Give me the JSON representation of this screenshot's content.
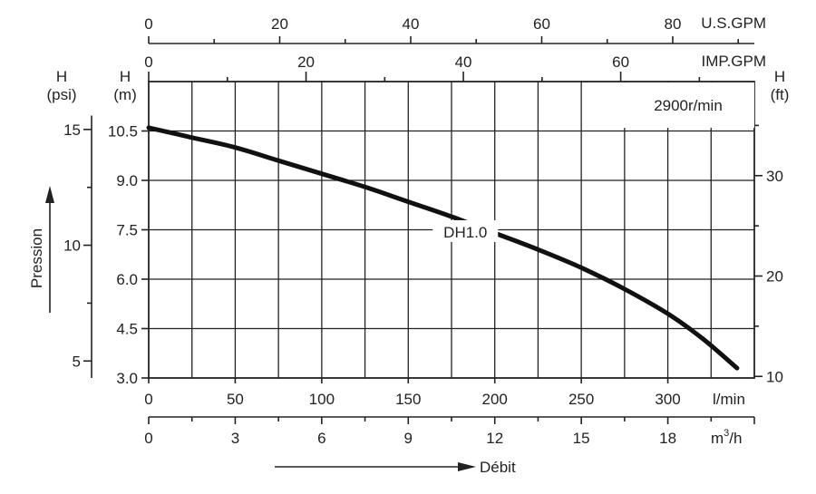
{
  "chart_data": {
    "type": "line",
    "speed_label": "2900r/min",
    "series": [
      {
        "name": "DH1.0",
        "x": [
          0,
          25,
          50,
          75,
          100,
          125,
          150,
          175,
          200,
          225,
          250,
          275,
          300,
          320,
          340
        ],
        "y": [
          10.6,
          10.3,
          10.0,
          9.6,
          9.2,
          8.8,
          8.35,
          7.9,
          7.4,
          6.9,
          6.35,
          5.7,
          4.95,
          4.2,
          3.3
        ]
      }
    ],
    "axes": {
      "flow_lmin": {
        "unit": "l/min",
        "range": [
          0,
          350
        ],
        "ticks": [
          0,
          50,
          100,
          150,
          200,
          250,
          300
        ],
        "tick_labels": [
          "0",
          "50",
          "100",
          "150",
          "200",
          "250",
          "300"
        ]
      },
      "flow_m3h": {
        "unit": "m³/h",
        "unit_base": "m",
        "unit_sup": "3",
        "unit_tail": "/h",
        "ticks": [
          0,
          3,
          6,
          9,
          12,
          15,
          18
        ],
        "tick_labels": [
          "0",
          "3",
          "6",
          "9",
          "12",
          "15",
          "18"
        ],
        "label": "Débit"
      },
      "flow_usgpm": {
        "unit": "U.S.GPM",
        "ticks": [
          0,
          20,
          40,
          60,
          80
        ],
        "tick_labels": [
          "0",
          "20",
          "40",
          "60",
          "80"
        ]
      },
      "flow_impgpm": {
        "unit": "IMP.GPM",
        "ticks": [
          0,
          20,
          40,
          60
        ],
        "tick_labels": [
          "0",
          "20",
          "40",
          "60"
        ]
      },
      "head_m": {
        "title": "H",
        "unit": "(m)",
        "range": [
          3.0,
          12.0
        ],
        "ticks": [
          3.0,
          4.5,
          6.0,
          7.5,
          9.0,
          10.5
        ],
        "tick_labels": [
          "3.0",
          "4.5",
          "6.0",
          "7.5",
          "9.0",
          "10.5"
        ]
      },
      "head_ft": {
        "title": "H",
        "unit": "(ft)",
        "ticks": [
          10,
          20,
          30
        ],
        "tick_labels": [
          "10",
          "20",
          "30"
        ]
      },
      "pressure_psi": {
        "title": "H",
        "unit": "(psi)",
        "ticks": [
          5,
          10,
          15
        ],
        "tick_labels": [
          "5",
          "10",
          "15"
        ],
        "label": "Pression"
      }
    }
  }
}
